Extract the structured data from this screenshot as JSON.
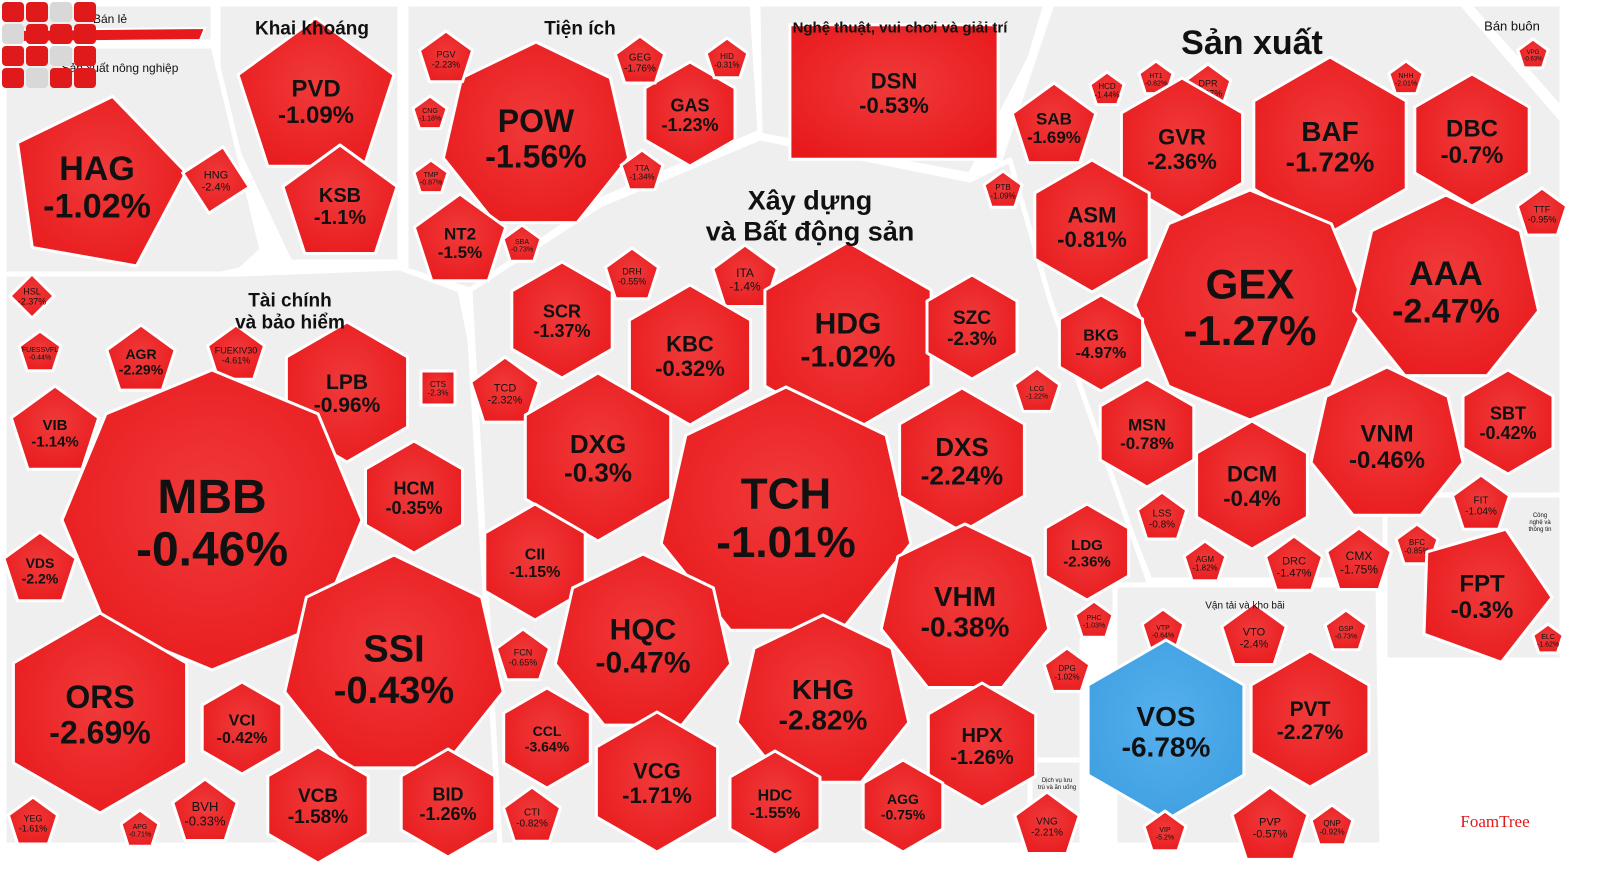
{
  "brand": {
    "name": "FoamTree"
  },
  "colors": {
    "down": "#e8191c",
    "down_light": "#f03a3a",
    "up": "#3d9ee0",
    "group_bg": "#efefef"
  },
  "chart_data": {
    "type": "treemap",
    "title": "",
    "groups": [
      {
        "name": "Bán lẻ"
      },
      {
        "name": "Khai khoáng"
      },
      {
        "name": "Tiện ích"
      },
      {
        "name": "Nghệ thuật, vui chơi và giải trí"
      },
      {
        "name": "Sản xuất"
      },
      {
        "name": "Bán buôn"
      },
      {
        "name": "Sản xuất nông nghiệp"
      },
      {
        "name": "Tài chính và bảo hiểm"
      },
      {
        "name": "Xây dựng và Bất động sản"
      },
      {
        "name": "Vận tải và kho bãi"
      },
      {
        "name": "Dịch vụ lưu trú và ăn uống"
      },
      {
        "name": "Công nghệ và thông tin"
      }
    ],
    "stocks": [
      {
        "ticker": "HAG",
        "change": "-1.02%",
        "value": -1.02,
        "group": "Sản xuất nông nghiệp"
      },
      {
        "ticker": "HNG",
        "change": "-2.4%",
        "value": -2.4,
        "group": "Sản xuất nông nghiệp"
      },
      {
        "ticker": "HSL",
        "change": "-2.37%",
        "value": -2.37,
        "group": "Sản xuất nông nghiệp"
      },
      {
        "ticker": "PVD",
        "change": "-1.09%",
        "value": -1.09,
        "group": "Khai khoáng"
      },
      {
        "ticker": "KSB",
        "change": "-1.1%",
        "value": -1.1,
        "group": "Khai khoáng"
      },
      {
        "ticker": "POW",
        "change": "-1.56%",
        "value": -1.56,
        "group": "Tiện ích"
      },
      {
        "ticker": "GAS",
        "change": "-1.23%",
        "value": -1.23,
        "group": "Tiện ích"
      },
      {
        "ticker": "GEG",
        "change": "-1.76%",
        "value": -1.76,
        "group": "Tiện ích"
      },
      {
        "ticker": "HID",
        "change": "-0.31%",
        "value": -0.31,
        "group": "Tiện ích"
      },
      {
        "ticker": "PGV",
        "change": "-2.23%",
        "value": -2.23,
        "group": "Tiện ích"
      },
      {
        "ticker": "CNG",
        "change": "-1.18%",
        "value": -1.18,
        "group": "Tiện ích"
      },
      {
        "ticker": "TMP",
        "change": "-0.87%",
        "value": -0.87,
        "group": "Tiện ích"
      },
      {
        "ticker": "NT2",
        "change": "-1.5%",
        "value": -1.5,
        "group": "Tiện ích"
      },
      {
        "ticker": "SBA",
        "change": "-0.73%",
        "value": -0.73,
        "group": "Tiện ích"
      },
      {
        "ticker": "TTA",
        "change": "-1.34%",
        "value": -1.34,
        "group": "Tiện ích"
      },
      {
        "ticker": "DSN",
        "change": "-0.53%",
        "value": -0.53,
        "group": "Nghệ thuật, vui chơi và giải trí"
      },
      {
        "ticker": "SAB",
        "change": "-1.69%",
        "value": -1.69,
        "group": "Sản xuất"
      },
      {
        "ticker": "HCD",
        "change": "-1.44%",
        "value": -1.44,
        "group": "Sản xuất"
      },
      {
        "ticker": "HT1",
        "change": "-0.82%",
        "value": -0.82,
        "group": "Sản xuất"
      },
      {
        "ticker": "DPR",
        "change": "-2.07%",
        "value": -2.07,
        "group": "Sản xuất"
      },
      {
        "ticker": "NHH",
        "change": "-2.01%",
        "value": -2.01,
        "group": "Sản xuất"
      },
      {
        "ticker": "GVR",
        "change": "-2.36%",
        "value": -2.36,
        "group": "Sản xuất"
      },
      {
        "ticker": "BAF",
        "change": "-1.72%",
        "value": -1.72,
        "group": "Sản xuất"
      },
      {
        "ticker": "DBC",
        "change": "-0.7%",
        "value": -0.7,
        "group": "Sản xuất"
      },
      {
        "ticker": "PTB",
        "change": "-1.09%",
        "value": -1.09,
        "group": "Sản xuất"
      },
      {
        "ticker": "ASM",
        "change": "-0.81%",
        "value": -0.81,
        "group": "Sản xuất"
      },
      {
        "ticker": "GEX",
        "change": "-1.27%",
        "value": -1.27,
        "group": "Sản xuất"
      },
      {
        "ticker": "AAA",
        "change": "-2.47%",
        "value": -2.47,
        "group": "Sản xuất"
      },
      {
        "ticker": "BKG",
        "change": "-4.97%",
        "value": -4.97,
        "group": "Sản xuất"
      },
      {
        "ticker": "MSN",
        "change": "-0.78%",
        "value": -0.78,
        "group": "Sản xuất"
      },
      {
        "ticker": "DCM",
        "change": "-0.4%",
        "value": -0.4,
        "group": "Sản xuất"
      },
      {
        "ticker": "VNM",
        "change": "-0.46%",
        "value": -0.46,
        "group": "Sản xuất"
      },
      {
        "ticker": "SBT",
        "change": "-0.42%",
        "value": -0.42,
        "group": "Sản xuất"
      },
      {
        "ticker": "TTF",
        "change": "-0.95%",
        "value": -0.95,
        "group": "Sản xuất"
      },
      {
        "ticker": "LSS",
        "change": "-0.8%",
        "value": -0.8,
        "group": "Sản xuất"
      },
      {
        "ticker": "AGM",
        "change": "-1.82%",
        "value": -1.82,
        "group": "Sản xuất"
      },
      {
        "ticker": "DRC",
        "change": "-1.47%",
        "value": -1.47,
        "group": "Sản xuất"
      },
      {
        "ticker": "CMX",
        "change": "-1.75%",
        "value": -1.75,
        "group": "Sản xuất"
      },
      {
        "ticker": "BFC",
        "change": "-0.85%",
        "value": -0.85,
        "group": "Sản xuất"
      },
      {
        "ticker": "FIT",
        "change": "-1.04%",
        "value": -1.04,
        "group": "Sản xuất"
      },
      {
        "ticker": "VPG",
        "change": "-0.63%",
        "value": -0.63,
        "group": "Bán buôn"
      },
      {
        "ticker": "FPT",
        "change": "-0.3%",
        "value": -0.3,
        "group": "Công nghệ và thông tin"
      },
      {
        "ticker": "ELC",
        "change": "-1.62%",
        "value": -1.62,
        "group": "Công nghệ và thông tin"
      },
      {
        "ticker": "AGR",
        "change": "-2.29%",
        "value": -2.29,
        "group": "Tài chính và bảo hiểm"
      },
      {
        "ticker": "FUEKIV30",
        "change": "-4.61%",
        "value": -4.61,
        "group": "Tài chính và bảo hiểm"
      },
      {
        "ticker": "FUESSVFL",
        "change": "-0.44%",
        "value": -0.44,
        "group": "Tài chính và bảo hiểm"
      },
      {
        "ticker": "LPB",
        "change": "-0.96%",
        "value": -0.96,
        "group": "Tài chính và bảo hiểm"
      },
      {
        "ticker": "CTS",
        "change": "-2.3%",
        "value": -2.3,
        "group": "Tài chính và bảo hiểm"
      },
      {
        "ticker": "VIB",
        "change": "-1.14%",
        "value": -1.14,
        "group": "Tài chính và bảo hiểm"
      },
      {
        "ticker": "MBB",
        "change": "-0.46%",
        "value": -0.46,
        "group": "Tài chính và bảo hiểm"
      },
      {
        "ticker": "HCM",
        "change": "-0.35%",
        "value": -0.35,
        "group": "Tài chính và bảo hiểm"
      },
      {
        "ticker": "VDS",
        "change": "-2.2%",
        "value": -2.2,
        "group": "Tài chính và bảo hiểm"
      },
      {
        "ticker": "SSI",
        "change": "-0.43%",
        "value": -0.43,
        "group": "Tài chính và bảo hiểm"
      },
      {
        "ticker": "ORS",
        "change": "-2.69%",
        "value": -2.69,
        "group": "Tài chính và bảo hiểm"
      },
      {
        "ticker": "VCI",
        "change": "-0.42%",
        "value": -0.42,
        "group": "Tài chính và bảo hiểm"
      },
      {
        "ticker": "VCB",
        "change": "-1.58%",
        "value": -1.58,
        "group": "Tài chính và bảo hiểm"
      },
      {
        "ticker": "BID",
        "change": "-1.26%",
        "value": -1.26,
        "group": "Tài chính và bảo hiểm"
      },
      {
        "ticker": "BVH",
        "change": "-0.33%",
        "value": -0.33,
        "group": "Tài chính và bảo hiểm"
      },
      {
        "ticker": "YEG",
        "change": "-1.61%",
        "value": -1.61,
        "group": "Tài chính và bảo hiểm"
      },
      {
        "ticker": "APG",
        "change": "-0.71%",
        "value": -0.71,
        "group": "Tài chính và bảo hiểm"
      },
      {
        "ticker": "DRH",
        "change": "-0.55%",
        "value": -0.55,
        "group": "Xây dựng và Bất động sản"
      },
      {
        "ticker": "ITA",
        "change": "-1.4%",
        "value": -1.4,
        "group": "Xây dựng và Bất động sản"
      },
      {
        "ticker": "SCR",
        "change": "-1.37%",
        "value": -1.37,
        "group": "Xây dựng và Bất động sản"
      },
      {
        "ticker": "KBC",
        "change": "-0.32%",
        "value": -0.32,
        "group": "Xây dựng và Bất động sản"
      },
      {
        "ticker": "HDG",
        "change": "-1.02%",
        "value": -1.02,
        "group": "Xây dựng và Bất động sản"
      },
      {
        "ticker": "SZC",
        "change": "-2.3%",
        "value": -2.3,
        "group": "Xây dựng và Bất động sản"
      },
      {
        "ticker": "TCD",
        "change": "-2.32%",
        "value": -2.32,
        "group": "Xây dựng và Bất động sản"
      },
      {
        "ticker": "DXG",
        "change": "-0.3%",
        "value": -0.3,
        "group": "Xây dựng và Bất động sản"
      },
      {
        "ticker": "TCH",
        "change": "-1.01%",
        "value": -1.01,
        "group": "Xây dựng và Bất động sản"
      },
      {
        "ticker": "DXS",
        "change": "-2.24%",
        "value": -2.24,
        "group": "Xây dựng và Bất động sản"
      },
      {
        "ticker": "LCG",
        "change": "-1.22%",
        "value": -1.22,
        "group": "Xây dựng và Bất động sản"
      },
      {
        "ticker": "CII",
        "change": "-1.15%",
        "value": -1.15,
        "group": "Xây dựng và Bất động sản"
      },
      {
        "ticker": "LDG",
        "change": "-2.36%",
        "value": -2.36,
        "group": "Xây dựng và Bất động sản"
      },
      {
        "ticker": "HQC",
        "change": "-0.47%",
        "value": -0.47,
        "group": "Xây dựng và Bất động sản"
      },
      {
        "ticker": "VHM",
        "change": "-0.38%",
        "value": -0.38,
        "group": "Xây dựng và Bất động sản"
      },
      {
        "ticker": "FCN",
        "change": "-0.65%",
        "value": -0.65,
        "group": "Xây dựng và Bất động sản"
      },
      {
        "ticker": "KHG",
        "change": "-2.82%",
        "value": -2.82,
        "group": "Xây dựng và Bất động sản"
      },
      {
        "ticker": "PHC",
        "change": "-1.03%",
        "value": -1.03,
        "group": "Xây dựng và Bất động sản"
      },
      {
        "ticker": "DPG",
        "change": "-1.02%",
        "value": -1.02,
        "group": "Xây dựng và Bất động sản"
      },
      {
        "ticker": "CCL",
        "change": "-3.64%",
        "value": -3.64,
        "group": "Xây dựng và Bất động sản"
      },
      {
        "ticker": "VCG",
        "change": "-1.71%",
        "value": -1.71,
        "group": "Xây dựng và Bất động sản"
      },
      {
        "ticker": "HPX",
        "change": "-1.26%",
        "value": -1.26,
        "group": "Xây dựng và Bất động sản"
      },
      {
        "ticker": "HDC",
        "change": "-1.55%",
        "value": -1.55,
        "group": "Xây dựng và Bất động sản"
      },
      {
        "ticker": "AGG",
        "change": "-0.75%",
        "value": -0.75,
        "group": "Xây dựng và Bất động sản"
      },
      {
        "ticker": "CTI",
        "change": "-0.82%",
        "value": -0.82,
        "group": "Xây dựng và Bất động sản"
      },
      {
        "ticker": "VTP",
        "change": "-0.64%",
        "value": -0.64,
        "group": "Vận tải và kho bãi"
      },
      {
        "ticker": "VTO",
        "change": "-2.4%",
        "value": -2.4,
        "group": "Vận tải và kho bãi"
      },
      {
        "ticker": "GSP",
        "change": "-0.73%",
        "value": -0.73,
        "group": "Vận tải và kho bãi"
      },
      {
        "ticker": "VOS",
        "change": "-6.78%",
        "value": -6.78,
        "group": "Vận tải và kho bãi"
      },
      {
        "ticker": "PVT",
        "change": "-2.27%",
        "value": -2.27,
        "group": "Vận tải và kho bãi"
      },
      {
        "ticker": "VIP",
        "change": "-5.2%",
        "value": -5.2,
        "group": "Vận tải và kho bãi"
      },
      {
        "ticker": "PVP",
        "change": "-0.57%",
        "value": -0.57,
        "group": "Vận tải và kho bãi"
      },
      {
        "ticker": "QNP",
        "change": "-0.92%",
        "value": -0.92,
        "group": "Vận tải và kho bãi"
      },
      {
        "ticker": "VNG",
        "change": "-2.21%",
        "value": -2.21,
        "group": "Dịch vụ lưu trú và ăn uống"
      }
    ]
  }
}
